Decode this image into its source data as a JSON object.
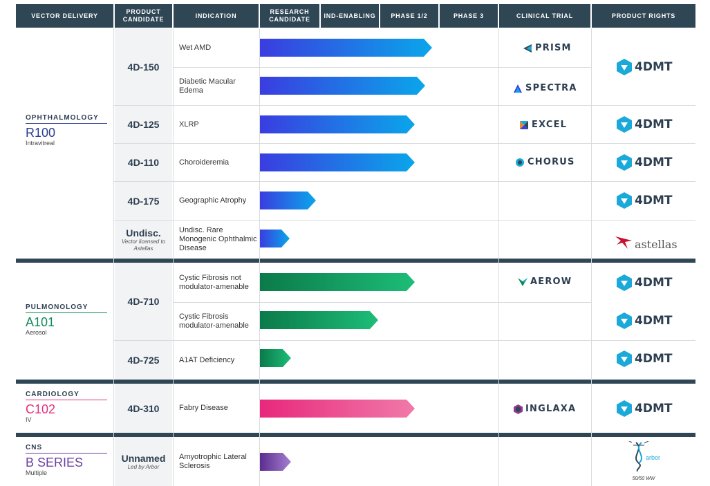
{
  "headers": {
    "vector_delivery": "VECTOR DELIVERY",
    "product_candidate": "PRODUCT CANDIDATE",
    "indication": "INDICATION",
    "research_candidate": "RESEARCH CANDIDATE",
    "ind_enabling": "IND-ENABLING",
    "phase12": "PHASE 1/2",
    "phase3": "PHASE 3",
    "clinical_trial": "CLINICAL TRIAL",
    "product_rights": "PRODUCT RIGHTS"
  },
  "areas": [
    {
      "name": "OPHTHALMOLOGY",
      "code": "R100",
      "route": "Intravitreal",
      "color": "#2a3d8f"
    },
    {
      "name": "PULMONOLOGY",
      "code": "A101",
      "route": "Aerosol",
      "color": "#0f8a55"
    },
    {
      "name": "CARDIOLOGY",
      "code": "C102",
      "route": "IV",
      "color": "#e0307f"
    },
    {
      "name": "CNS",
      "code": "B SERIES",
      "route": "Multiple",
      "color": "#6b3fa0"
    }
  ],
  "candidates": [
    {
      "name": "4D-150"
    },
    {
      "name": "4D-125"
    },
    {
      "name": "4D-110"
    },
    {
      "name": "4D-175"
    },
    {
      "name": "Undisc.",
      "note": "Vector licensed to Astellas"
    },
    {
      "name": "4D-710"
    },
    {
      "name": "4D-725"
    },
    {
      "name": "4D-310"
    },
    {
      "name": "Unnamed",
      "note": "Led by Arbor"
    }
  ],
  "rows": [
    {
      "indication": "Wet AMD",
      "progress": 0.99,
      "trial": "PRISM",
      "rights": "4DMT"
    },
    {
      "indication": "Diabetic Macular Edema",
      "progress": 0.95,
      "trial": "SPECTRA",
      "rights": ""
    },
    {
      "indication": "XLRP",
      "progress": 0.89,
      "trial": "EXCEL",
      "rights": "4DMT"
    },
    {
      "indication": "Choroideremia",
      "progress": 0.89,
      "trial": "CHORUS",
      "rights": "4DMT"
    },
    {
      "indication": "Geographic Atrophy",
      "progress": 0.32,
      "trial": "",
      "rights": "4DMT"
    },
    {
      "indication": "Undisc. Rare Monogenic Ophthalmic Disease",
      "progress": 0.17,
      "trial": "",
      "rights": "astellas"
    },
    {
      "indication": "Cystic Fibrosis not modulator-amenable",
      "progress": 0.89,
      "trial": "AEROW",
      "rights": "4DMT"
    },
    {
      "indication": "Cystic Fibrosis modulator-amenable",
      "progress": 0.68,
      "trial": "",
      "rights": "4DMT"
    },
    {
      "indication": "A1AT Deficiency",
      "progress": 0.18,
      "trial": "",
      "rights": "4DMT"
    },
    {
      "indication": "Fabry Disease",
      "progress": 0.89,
      "trial": "INGLAXA",
      "rights": "4DMT"
    },
    {
      "indication": "Amyotrophic Lateral Sclerosis",
      "progress": 0.18,
      "trial": "",
      "rights": "arbor biotech"
    }
  ],
  "arbor_note": "50/50 WW",
  "colors": {
    "header_bg": "#2f4655",
    "ophthalmology_from": "#3a3de0",
    "ophthalmology_to": "#0aa6ea",
    "pulmonology_from": "#0b7a4a",
    "pulmonology_to": "#1dbd78",
    "cardiology_from": "#e8287c",
    "cardiology_to": "#f07aa9",
    "cns_from": "#5b2d8f",
    "cns_to": "#a57fd0",
    "fourdmt": "#1aa9d8"
  }
}
